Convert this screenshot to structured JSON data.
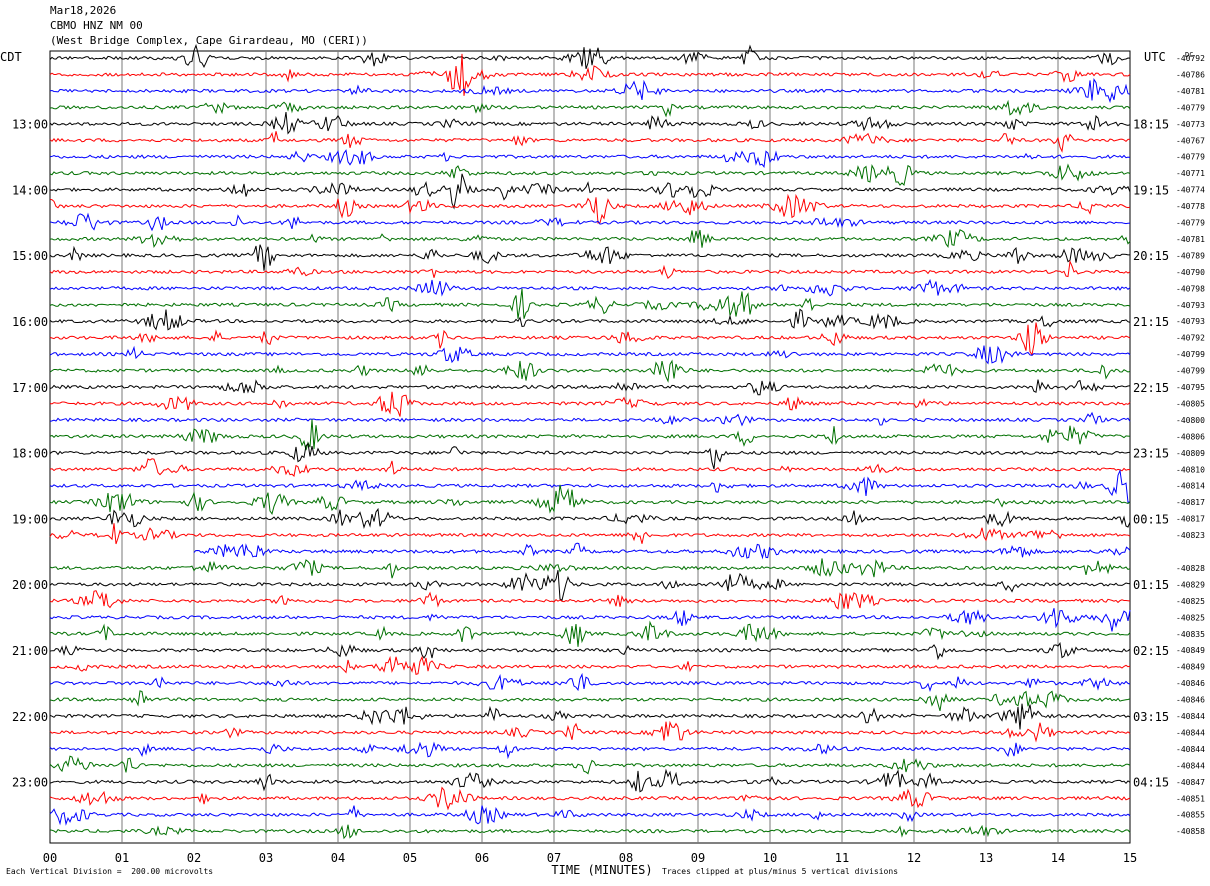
{
  "header": {
    "date": "Mar18,2026",
    "station": "CBMO HNZ NM 00",
    "location": "(West Bridge Complex, Cape Girardeau, MO (CERI))"
  },
  "chart_data": {
    "type": "line",
    "title": "Mar18,2026",
    "left_axis_label": "CDT",
    "right_axis_label": "UTC",
    "dc_label": "DC",
    "left_hour_labels": [
      "13:00",
      "14:00",
      "15:00",
      "16:00",
      "17:00",
      "18:00",
      "19:00",
      "20:00",
      "21:00",
      "22:00",
      "23:00"
    ],
    "right_hour_labels": [
      "18:15",
      "19:15",
      "20:15",
      "21:15",
      "22:15",
      "23:15",
      "00:15",
      "01:15",
      "02:15",
      "03:15",
      "04:15"
    ],
    "x_ticks": [
      "00",
      "01",
      "02",
      "03",
      "04",
      "05",
      "06",
      "07",
      "08",
      "09",
      "10",
      "11",
      "12",
      "13",
      "14",
      "15"
    ],
    "xlim": [
      0,
      15
    ],
    "xlabel": "TIME (MINUTES)",
    "trace_colors": [
      "#000000",
      "#ff0000",
      "#0000ff",
      "#007000"
    ],
    "dc_offsets": [
      "-40792",
      "-40786",
      "-40781",
      "-40779",
      "-40773",
      "-40767",
      "-40779",
      "-40771",
      "-40774",
      "-40778",
      "-40779",
      "-40781",
      "-40789",
      "-40790",
      "-40798",
      "-40793",
      "-40793",
      "-40792",
      "-40799",
      "-40799",
      "-40795",
      "-40805",
      "-40800",
      "-40806",
      "-40809",
      "-40810",
      "-40814",
      "-40817",
      "-40817",
      "-40823",
      "",
      "-40828",
      "-40829",
      "-40825",
      "-40825",
      "-40835",
      "-40849",
      "-40849",
      "-40846",
      "-40846",
      "-40844",
      "-40844",
      "-40844",
      "-40844",
      "-40847",
      "-40851",
      "-40855",
      "-40858"
    ],
    "notes": {
      "scale": "Each Vertical Division =  200.00 microvolts",
      "clip": "Traces clipped at plus/minus 5 vertical divisions"
    }
  }
}
